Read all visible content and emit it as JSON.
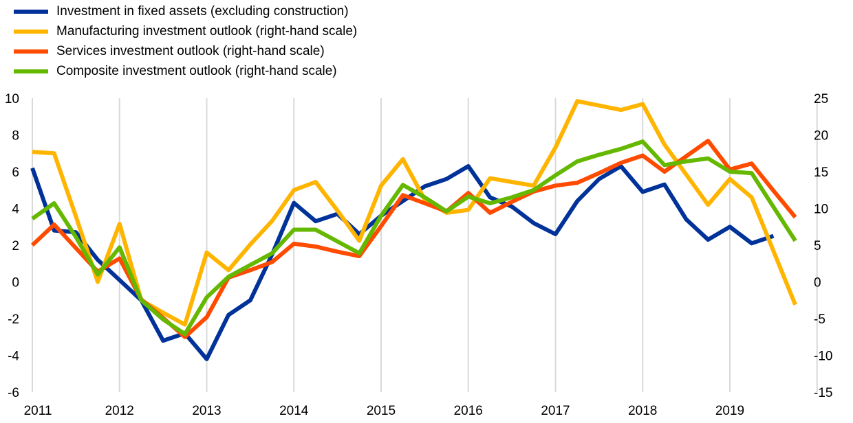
{
  "chart_data": {
    "type": "line",
    "title": "",
    "x_labels": [
      "2011",
      "2012",
      "2013",
      "2014",
      "2015",
      "2016",
      "2017",
      "2018",
      "2019"
    ],
    "x_start": 2011,
    "x_end": 2020,
    "frequency": "quarterly",
    "left_axis": {
      "ylim": [
        -6,
        10
      ],
      "ticks": [
        "10",
        "8",
        "6",
        "4",
        "2",
        "0",
        "-2",
        "-4",
        "-6"
      ],
      "tick_values": [
        10,
        8,
        6,
        4,
        2,
        0,
        -2,
        -4,
        -6
      ]
    },
    "right_axis": {
      "ylim": [
        -15,
        25
      ],
      "ticks": [
        "25",
        "20",
        "15",
        "10",
        "5",
        "0",
        "-5",
        "-10",
        "-15"
      ],
      "tick_values": [
        25,
        20,
        15,
        10,
        5,
        0,
        -5,
        -10,
        -15
      ]
    },
    "grid": "vertical",
    "legend_position": "top-left",
    "series": [
      {
        "name": "Investment in fixed assets (excluding construction)",
        "axis": "left",
        "color": "#003299",
        "values": [
          6.2,
          2.8,
          2.7,
          1.2,
          0.1,
          -1.0,
          -3.2,
          -2.8,
          -4.2,
          -1.8,
          -1.0,
          1.5,
          4.3,
          3.3,
          3.7,
          2.6,
          3.6,
          4.4,
          5.2,
          5.6,
          6.3,
          4.6,
          4.1,
          3.2,
          2.6,
          4.4,
          5.6,
          6.3,
          4.9,
          5.3,
          3.4,
          2.3,
          3.0,
          2.1,
          2.5
        ]
      },
      {
        "name": "Manufacturing investment outlook (right-hand scale)",
        "axis": "right",
        "color": "#ffb400",
        "values": [
          17.7,
          17.5,
          8.9,
          0.0,
          7.9,
          -2.5,
          -4.2,
          -5.8,
          4.0,
          1.6,
          5.1,
          8.3,
          12.5,
          13.6,
          9.7,
          5.6,
          13.1,
          16.7,
          11.2,
          9.4,
          9.8,
          14.1,
          13.6,
          13.1,
          18.3,
          24.6,
          24.0,
          23.4,
          24.2,
          18.7,
          14.6,
          10.5,
          14.0,
          11.5,
          4.2,
          -3.1
        ]
      },
      {
        "name": "Services investment outlook (right-hand scale)",
        "axis": "right",
        "color": "#ff4b00",
        "values": [
          5.0,
          7.8,
          4.6,
          1.4,
          3.2,
          -2.4,
          -4.9,
          -7.5,
          -4.8,
          0.6,
          1.6,
          2.7,
          5.2,
          4.8,
          4.1,
          3.5,
          7.6,
          11.8,
          10.7,
          9.6,
          12.1,
          9.4,
          10.9,
          12.3,
          13.1,
          13.5,
          14.8,
          16.2,
          17.2,
          15.0,
          17.1,
          19.2,
          15.3,
          16.1,
          12.4,
          8.8
        ]
      },
      {
        "name": "Composite investment outlook (right-hand scale)",
        "axis": "right",
        "color": "#65b800",
        "values": [
          8.6,
          10.7,
          6.1,
          1.0,
          4.7,
          -2.5,
          -5.1,
          -7.1,
          -2.1,
          0.7,
          2.3,
          3.9,
          7.1,
          7.1,
          5.5,
          3.9,
          9.0,
          13.2,
          11.5,
          9.6,
          11.6,
          10.7,
          11.5,
          12.5,
          14.5,
          16.4,
          17.3,
          18.1,
          19.1,
          15.9,
          16.4,
          16.8,
          15.0,
          14.8,
          10.2,
          5.6
        ]
      }
    ]
  }
}
